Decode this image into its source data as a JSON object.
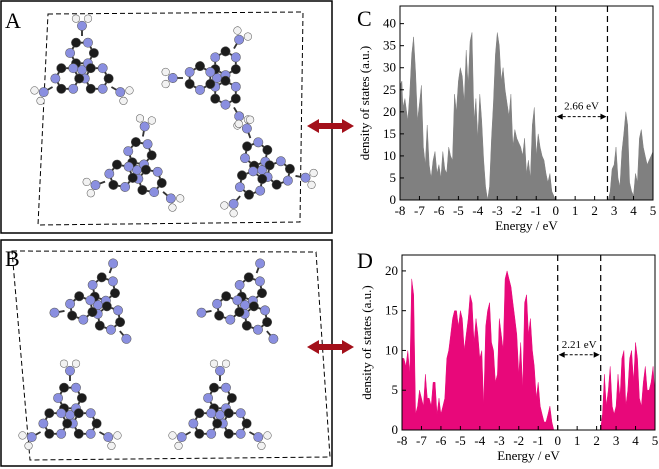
{
  "panels": {
    "A": {
      "label": "A"
    },
    "B": {
      "label": "B"
    },
    "C": {
      "label": "C"
    },
    "D": {
      "label": "D"
    }
  },
  "colors": {
    "nitrogen": "#8a8fe0",
    "carbon": "#1c1c1c",
    "hydrogen": "#f2f2f2",
    "arrow": "#a3101a",
    "dos_C": "#808080",
    "dos_D": "#e8087a"
  },
  "chart_data": [
    {
      "id": "C",
      "type": "area",
      "title": "",
      "xlabel": "Energy / eV",
      "ylabel": "density of states (a.u.)",
      "xlim": [
        -8,
        5
      ],
      "ylim": [
        0,
        44
      ],
      "xticks": [
        -8,
        -7,
        -6,
        -5,
        -4,
        -3,
        -2,
        -1,
        0,
        1,
        2,
        3,
        4,
        5
      ],
      "yticks": [
        0,
        5,
        10,
        15,
        20,
        25,
        30,
        35,
        40
      ],
      "grid": false,
      "gap": {
        "from": 0,
        "to": 2.66,
        "label": "2.66 eV"
      },
      "x": [
        -8,
        -7.9,
        -7.85,
        -7.75,
        -7.6,
        -7.5,
        -7.4,
        -7.3,
        -7.2,
        -7.1,
        -7.0,
        -6.9,
        -6.8,
        -6.7,
        -6.6,
        -6.5,
        -6.4,
        -6.3,
        -6.2,
        -6.1,
        -6.0,
        -5.9,
        -5.8,
        -5.7,
        -5.6,
        -5.5,
        -5.4,
        -5.3,
        -5.2,
        -5.1,
        -5.0,
        -4.9,
        -4.8,
        -4.7,
        -4.6,
        -4.5,
        -4.4,
        -4.3,
        -4.2,
        -4.1,
        -4.0,
        -3.9,
        -3.8,
        -3.7,
        -3.6,
        -3.5,
        -3.4,
        -3.3,
        -3.2,
        -3.1,
        -3.0,
        -2.9,
        -2.8,
        -2.7,
        -2.6,
        -2.5,
        -2.4,
        -2.3,
        -2.2,
        -2.1,
        -2.0,
        -1.9,
        -1.8,
        -1.7,
        -1.6,
        -1.5,
        -1.4,
        -1.3,
        -1.2,
        -1.1,
        -1.0,
        -0.9,
        -0.8,
        -0.7,
        -0.6,
        -0.5,
        -0.4,
        -0.3,
        -0.2,
        -0.1,
        0.0,
        0.05,
        2.65,
        2.7,
        2.8,
        2.9,
        3.0,
        3.1,
        3.2,
        3.3,
        3.4,
        3.5,
        3.6,
        3.7,
        3.8,
        3.9,
        4.0,
        4.1,
        4.2,
        4.3,
        4.4,
        4.5,
        4.6,
        4.7,
        4.8,
        4.9,
        5.0
      ],
      "y": [
        26,
        27,
        21,
        23,
        18,
        24,
        33,
        37,
        29,
        18,
        22,
        26,
        12,
        8,
        17,
        8,
        5,
        9,
        11,
        6,
        8,
        5,
        11,
        7,
        6,
        12,
        10,
        9,
        24,
        20,
        27,
        30,
        28,
        22,
        34,
        26,
        36,
        38,
        18,
        23,
        14,
        24,
        18,
        9,
        3,
        0,
        3,
        14,
        22,
        33,
        38,
        35,
        27,
        30,
        25,
        22,
        19,
        24,
        12,
        16,
        14,
        13,
        12,
        10,
        14,
        6,
        9,
        5,
        17,
        21,
        10,
        15,
        12,
        10,
        9,
        6,
        4,
        6,
        2,
        1,
        0,
        0,
        0,
        0,
        2,
        7,
        8,
        12,
        5,
        3,
        11,
        15,
        20,
        17,
        4,
        2,
        1,
        6,
        4,
        14,
        16,
        12,
        10,
        8,
        9,
        10,
        11
      ]
    },
    {
      "id": "D",
      "type": "area",
      "title": "",
      "xlabel": "Energy / eV",
      "ylabel": "density of states (a.u.)",
      "xlim": [
        -8,
        5
      ],
      "ylim": [
        0,
        22
      ],
      "xticks": [
        -8,
        -7,
        -6,
        -5,
        -4,
        -3,
        -2,
        -1,
        0,
        1,
        2,
        3,
        4,
        5
      ],
      "yticks": [
        0,
        5,
        10,
        15,
        20
      ],
      "grid": false,
      "gap": {
        "from": 0,
        "to": 2.21,
        "label": "2.21 eV"
      },
      "x": [
        -8,
        -7.9,
        -7.8,
        -7.7,
        -7.6,
        -7.5,
        -7.4,
        -7.3,
        -7.2,
        -7.1,
        -7.0,
        -6.9,
        -6.8,
        -6.7,
        -6.6,
        -6.5,
        -6.4,
        -6.3,
        -6.2,
        -6.1,
        -6.0,
        -5.9,
        -5.8,
        -5.7,
        -5.6,
        -5.5,
        -5.4,
        -5.3,
        -5.2,
        -5.1,
        -5.0,
        -4.9,
        -4.8,
        -4.7,
        -4.6,
        -4.5,
        -4.4,
        -4.3,
        -4.2,
        -4.1,
        -4.0,
        -3.9,
        -3.8,
        -3.7,
        -3.6,
        -3.5,
        -3.4,
        -3.3,
        -3.2,
        -3.1,
        -3.0,
        -2.9,
        -2.8,
        -2.7,
        -2.6,
        -2.5,
        -2.4,
        -2.3,
        -2.2,
        -2.1,
        -2.0,
        -1.9,
        -1.8,
        -1.7,
        -1.6,
        -1.5,
        -1.4,
        -1.3,
        -1.2,
        -1.1,
        -1.0,
        -0.9,
        -0.8,
        -0.7,
        -0.6,
        -0.5,
        -0.4,
        -0.3,
        -0.2,
        -0.1,
        0.0,
        0.05,
        2.2,
        2.3,
        2.4,
        2.5,
        2.6,
        2.7,
        2.8,
        2.9,
        3.0,
        3.1,
        3.2,
        3.3,
        3.4,
        3.5,
        3.6,
        3.7,
        3.8,
        3.9,
        4.0,
        4.1,
        4.2,
        4.3,
        4.4,
        4.5,
        4.6,
        4.7,
        4.8,
        4.9,
        5.0
      ],
      "y": [
        9,
        9,
        8,
        10,
        7,
        19,
        17,
        2,
        3,
        5,
        4,
        3,
        7,
        4,
        4,
        3,
        6,
        6,
        2,
        4,
        2,
        3,
        4,
        9,
        10,
        12,
        14,
        15,
        15,
        13,
        15,
        14,
        10,
        12,
        14,
        17,
        16,
        11,
        14,
        12,
        9,
        10,
        3,
        13,
        15,
        16,
        11,
        10,
        6,
        7,
        14,
        12,
        10,
        19,
        20,
        19,
        18,
        16,
        14,
        12,
        7,
        11,
        5,
        16,
        17,
        12,
        14,
        10,
        8,
        4,
        6,
        3,
        2,
        1,
        1,
        2,
        3,
        1,
        0,
        0,
        0,
        0,
        0,
        2,
        7,
        3,
        5,
        8,
        3,
        2,
        3,
        7,
        4,
        9,
        10,
        3,
        5,
        9,
        10,
        6,
        11,
        9,
        4,
        3,
        6,
        8,
        5,
        5,
        6,
        8,
        4
      ]
    }
  ]
}
